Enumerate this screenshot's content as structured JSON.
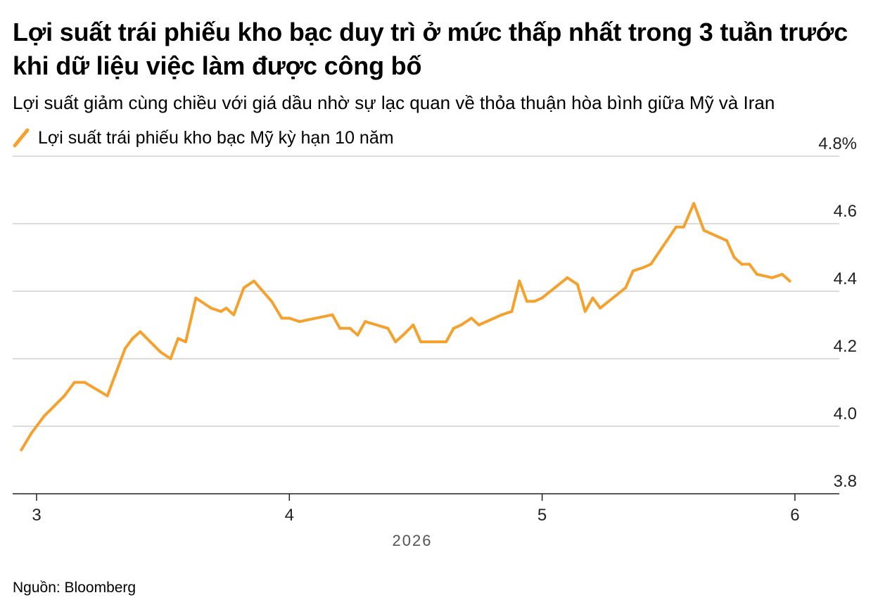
{
  "title": "Lợi suất trái phiếu kho bạc duy trì ở mức thấp nhất trong 3 tuần trước khi dữ  liệu việc làm được công bố",
  "subtitle": "Lợi suất giảm cùng chiều với giá dầu nhờ sự lạc quan về thỏa thuận hòa bình giữa Mỹ và Iran",
  "source": "Nguồn: Bloomberg",
  "colors": {
    "line": "#f5a12e",
    "grid": "#c8c8c8",
    "axis": "#222222"
  },
  "chart_data": {
    "type": "line",
    "x_axis_label": "2026",
    "x_ticks": [
      {
        "label": "3",
        "value": 3
      },
      {
        "label": "4",
        "value": 4
      },
      {
        "label": "5",
        "value": 5
      },
      {
        "label": "6",
        "value": 6
      }
    ],
    "y_ticks": [
      "4.8%",
      "4.6",
      "4.4",
      "4.2",
      "4.0",
      "3.8"
    ],
    "ylim": [
      3.8,
      4.8
    ],
    "y_unit": "%",
    "grid": true,
    "legend_position": "top-left",
    "series": [
      {
        "name": "Lợi suất trái phiếu kho bạc Mỹ kỳ hạn 10 năm",
        "x": [
          2.94,
          2.98,
          3.03,
          3.07,
          3.11,
          3.15,
          3.19,
          3.28,
          3.31,
          3.35,
          3.38,
          3.41,
          3.49,
          3.53,
          3.56,
          3.59,
          3.63,
          3.69,
          3.73,
          3.75,
          3.78,
          3.82,
          3.86,
          3.93,
          3.97,
          4.0,
          4.04,
          4.17,
          4.2,
          4.24,
          4.27,
          4.3,
          4.39,
          4.42,
          4.45,
          4.49,
          4.52,
          4.62,
          4.65,
          4.68,
          4.72,
          4.75,
          4.84,
          4.88,
          4.91,
          4.94,
          4.97,
          5.0,
          5.1,
          5.14,
          5.17,
          5.2,
          5.23,
          5.33,
          5.36,
          5.4,
          5.43,
          5.53,
          5.56,
          5.6,
          5.64,
          5.73,
          5.76,
          5.79,
          5.82,
          5.85,
          5.91,
          5.95,
          5.98
        ],
        "values": [
          3.93,
          3.98,
          4.03,
          4.06,
          4.09,
          4.13,
          4.13,
          4.09,
          4.15,
          4.23,
          4.26,
          4.28,
          4.22,
          4.2,
          4.26,
          4.25,
          4.38,
          4.35,
          4.34,
          4.35,
          4.33,
          4.41,
          4.43,
          4.37,
          4.32,
          4.32,
          4.31,
          4.33,
          4.29,
          4.29,
          4.27,
          4.31,
          4.29,
          4.25,
          4.27,
          4.3,
          4.25,
          4.25,
          4.29,
          4.3,
          4.32,
          4.3,
          4.33,
          4.34,
          4.43,
          4.37,
          4.37,
          4.38,
          4.44,
          4.42,
          4.34,
          4.38,
          4.35,
          4.41,
          4.46,
          4.47,
          4.48,
          4.59,
          4.59,
          4.66,
          4.58,
          4.55,
          4.5,
          4.48,
          4.48,
          4.45,
          4.44,
          4.45,
          4.43
        ]
      }
    ]
  }
}
